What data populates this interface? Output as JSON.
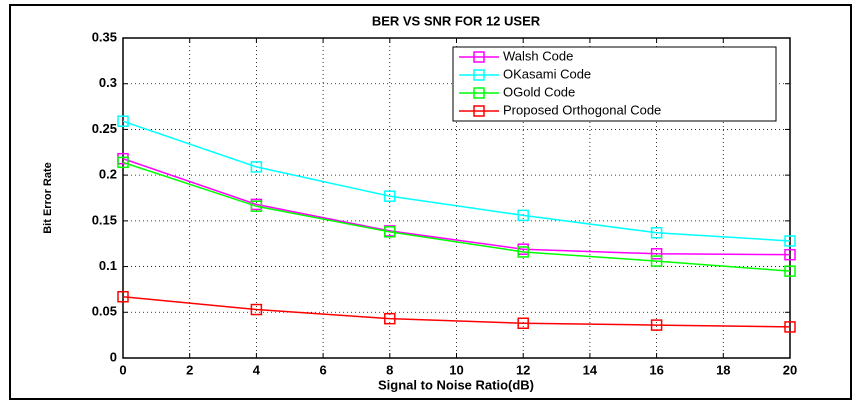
{
  "chart_data": {
    "type": "line",
    "title": "BER VS SNR FOR 12 USER",
    "xlabel": "Signal to Noise Ratio(dB)",
    "ylabel": "Bit Error Rate",
    "x": [
      0,
      4,
      8,
      12,
      16,
      20
    ],
    "series": [
      {
        "name": "Walsh Code",
        "color": "#ff00ff",
        "values": [
          0.218,
          0.168,
          0.139,
          0.119,
          0.114,
          0.113
        ]
      },
      {
        "name": "OKasami Code",
        "color": "#00ffff",
        "values": [
          0.259,
          0.209,
          0.177,
          0.156,
          0.137,
          0.128
        ]
      },
      {
        "name": "OGold Code",
        "color": "#00ff00",
        "values": [
          0.214,
          0.166,
          0.138,
          0.116,
          0.106,
          0.095
        ]
      },
      {
        "name": "Proposed Orthogonal Code",
        "color": "#ff0000",
        "values": [
          0.067,
          0.053,
          0.043,
          0.038,
          0.036,
          0.034
        ]
      }
    ],
    "xlim": [
      0,
      20
    ],
    "xticks": [
      0,
      2,
      4,
      6,
      8,
      10,
      12,
      14,
      16,
      18,
      20
    ],
    "ylim": [
      0,
      0.35
    ],
    "yticks": [
      0,
      0.05,
      0.1,
      0.15,
      0.2,
      0.25,
      0.3,
      0.35
    ],
    "grid": true,
    "legend": "upper right"
  }
}
